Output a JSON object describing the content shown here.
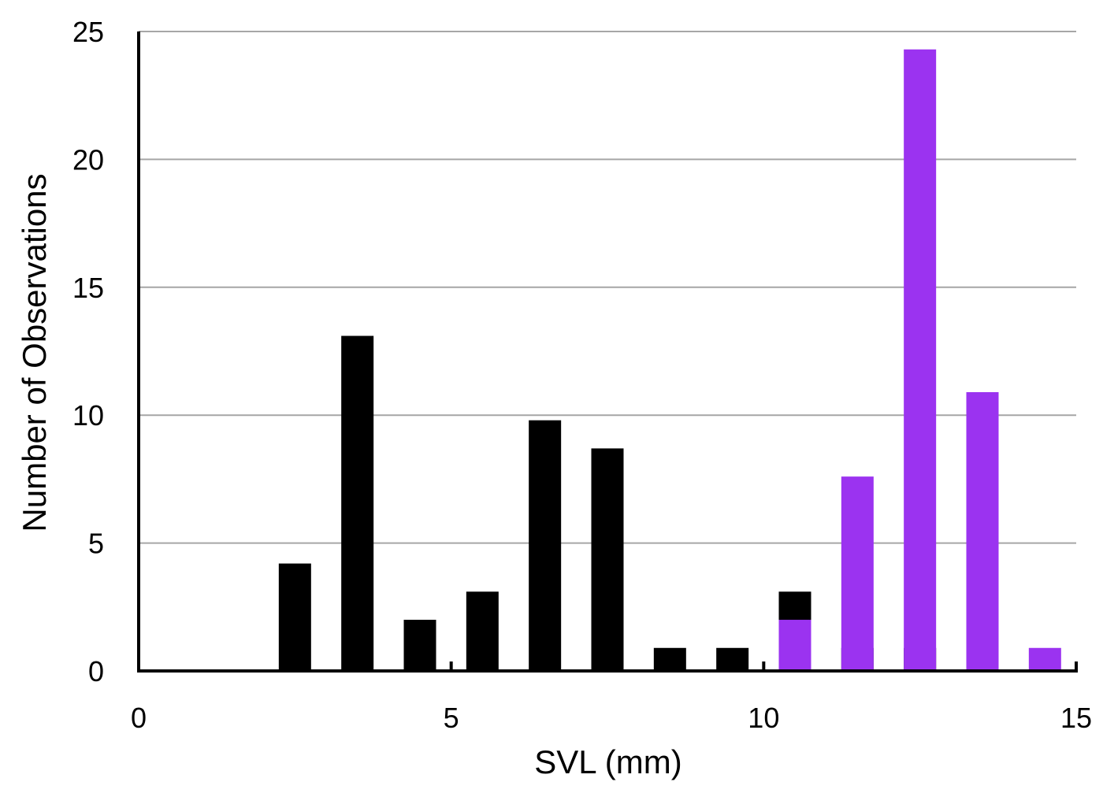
{
  "chart_data": {
    "type": "bar",
    "title": "",
    "xlabel": "SVL (mm)",
    "ylabel": "Number of Observations",
    "xlim": [
      0,
      15
    ],
    "ylim": [
      0,
      25
    ],
    "x_ticks": [
      "0",
      "5",
      "10",
      "15"
    ],
    "y_ticks": [
      "0",
      "5",
      "10",
      "15",
      "20",
      "25"
    ],
    "grid": "horizontal",
    "legend": "none",
    "series": [
      {
        "color": "#000000",
        "bins": [
          {
            "x": 2.5,
            "value": 4.2
          },
          {
            "x": 3.5,
            "value": 13.1
          },
          {
            "x": 4.5,
            "value": 2
          },
          {
            "x": 5.5,
            "value": 3.1
          },
          {
            "x": 6.5,
            "value": 9.8
          },
          {
            "x": 7.5,
            "value": 8.7
          },
          {
            "x": 8.5,
            "value": 0.9
          },
          {
            "x": 9.5,
            "value": 0.9
          },
          {
            "x": 10.5,
            "value": 3.1
          },
          {
            "x": 11.5,
            "value": 0.9
          },
          {
            "x": 12.5,
            "value": 0.9
          }
        ]
      },
      {
        "color": "#9b33f0",
        "bins": [
          {
            "x": 10.5,
            "value": 2
          },
          {
            "x": 11.5,
            "value": 7.6
          },
          {
            "x": 12.5,
            "value": 24.3
          },
          {
            "x": 13.5,
            "value": 10.9
          },
          {
            "x": 14.5,
            "value": 0.9
          }
        ]
      }
    ]
  }
}
